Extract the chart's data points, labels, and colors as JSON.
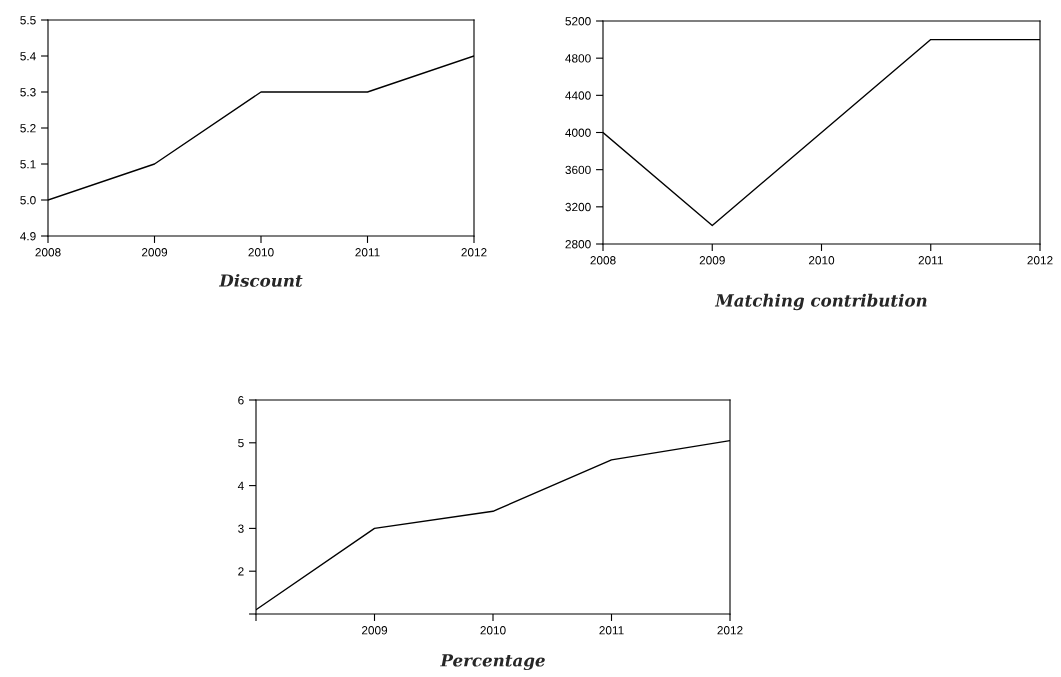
{
  "chart_data": [
    {
      "type": "line",
      "title": "Discount",
      "x": [
        2008,
        2009,
        2010,
        2011,
        2012
      ],
      "values": [
        5.0,
        5.1,
        5.3,
        5.3,
        5.4
      ],
      "color": "#000000",
      "xlim": [
        2008,
        2012
      ],
      "xticks": [
        2008,
        2009,
        2010,
        2011,
        2012
      ],
      "ylim": [
        4.9,
        5.5
      ],
      "yticks": [
        {
          "value": 4.9,
          "label": "4.9"
        },
        {
          "value": 5.0,
          "label": "5.0"
        },
        {
          "value": 5.1,
          "label": "5.1"
        },
        {
          "value": 5.2,
          "label": "5.2"
        },
        {
          "value": 5.3,
          "label": "5.3"
        },
        {
          "value": 5.4,
          "label": "5.4"
        },
        {
          "value": 5.5,
          "label": "5.5"
        }
      ],
      "grid": false
    },
    {
      "type": "line",
      "title": "Matching contribution",
      "x": [
        2008,
        2009,
        2010,
        2011,
        2012
      ],
      "values": [
        4000,
        3000,
        4000,
        5000,
        5000
      ],
      "color": "#000000",
      "xlim": [
        2008,
        2012
      ],
      "xticks": [
        2008,
        2009,
        2010,
        2011,
        2012
      ],
      "ylim": [
        2800,
        5200
      ],
      "yticks": [
        2800,
        3200,
        3600,
        4000,
        4400,
        4800,
        5200
      ],
      "grid": false
    },
    {
      "type": "line",
      "title": "Percentage",
      "x": [
        2008,
        2009,
        2010,
        2011,
        2012
      ],
      "values": [
        1.1,
        3.0,
        3.4,
        4.6,
        5.05
      ],
      "color": "#000000",
      "xlim": [
        2008,
        2012
      ],
      "xticks": [
        {
          "value": 2008,
          "label": null
        },
        2009,
        2010,
        2011,
        2012
      ],
      "ylim": [
        1,
        6
      ],
      "yticks": [
        {
          "value": 1,
          "label": null
        },
        2,
        3,
        4,
        5,
        6
      ],
      "grid": false
    }
  ]
}
